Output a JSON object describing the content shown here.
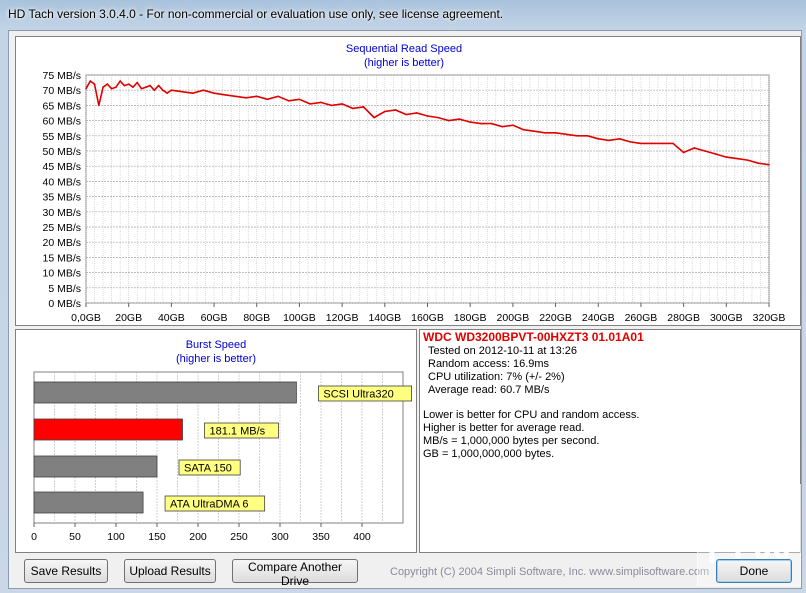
{
  "window": {
    "title": "HD Tach version 3.0.4.0  - For non-commercial or evaluation use only, see license agreement."
  },
  "seq_chart": {
    "title": "Sequential Read Speed",
    "subtitle": "(higher is better)",
    "y_ticks": [
      "0 MB/s",
      "5 MB/s",
      "10 MB/s",
      "15 MB/s",
      "20 MB/s",
      "25 MB/s",
      "30 MB/s",
      "35 MB/s",
      "40 MB/s",
      "45 MB/s",
      "50 MB/s",
      "55 MB/s",
      "60 MB/s",
      "65 MB/s",
      "70 MB/s",
      "75 MB/s"
    ],
    "x_ticks": [
      "0,0GB",
      "20GB",
      "40GB",
      "60GB",
      "80GB",
      "100GB",
      "120GB",
      "140GB",
      "160GB",
      "180GB",
      "200GB",
      "220GB",
      "240GB",
      "260GB",
      "280GB",
      "300GB",
      "320GB"
    ],
    "line_color": "#e00000"
  },
  "burst_chart": {
    "title": "Burst Speed",
    "subtitle": "(higher is better)",
    "x_ticks": [
      "0",
      "50",
      "100",
      "150",
      "200",
      "250",
      "300",
      "350",
      "400"
    ]
  },
  "chart_data": [
    {
      "type": "line",
      "title": "Sequential Read Speed",
      "subtitle": "(higher is better)",
      "xlabel": "",
      "ylabel": "",
      "xlim": [
        0,
        320
      ],
      "ylim": [
        0,
        75
      ],
      "grid": true,
      "series": [
        {
          "color": "#e00000",
          "x": [
            0,
            2,
            4,
            6,
            8,
            10,
            12,
            14,
            16,
            18,
            20,
            22,
            24,
            26,
            28,
            30,
            32,
            34,
            36,
            38,
            40,
            45,
            50,
            55,
            60,
            65,
            70,
            75,
            80,
            85,
            90,
            95,
            100,
            105,
            110,
            115,
            120,
            125,
            130,
            135,
            140,
            145,
            150,
            155,
            160,
            165,
            170,
            175,
            180,
            185,
            190,
            195,
            200,
            205,
            210,
            215,
            220,
            225,
            230,
            235,
            240,
            245,
            250,
            255,
            260,
            265,
            270,
            275,
            280,
            285,
            290,
            295,
            300,
            305,
            310,
            315,
            320
          ],
          "values": [
            70.5,
            73,
            72,
            65,
            71,
            72,
            70.5,
            71,
            73,
            71.5,
            72,
            71,
            72.5,
            70.5,
            71,
            71.5,
            70,
            71.5,
            70,
            69,
            70,
            69.5,
            69,
            70,
            69,
            68.5,
            68,
            67.5,
            68,
            67,
            68,
            66.5,
            67,
            65.5,
            66,
            65,
            65.5,
            64,
            64.5,
            61,
            63,
            63.5,
            62,
            62.5,
            61.5,
            61,
            60,
            60.5,
            59.5,
            59,
            59,
            58,
            58.5,
            57,
            56.5,
            56,
            56,
            55.5,
            55,
            55,
            54,
            53.5,
            54,
            53,
            52.5,
            52.5,
            52.5,
            52.5,
            49.5,
            51,
            50,
            49,
            48,
            47.5,
            47,
            46,
            45.5
          ]
        }
      ]
    },
    {
      "type": "bar",
      "orientation": "horizontal",
      "title": "Burst Speed",
      "subtitle": "(higher is better)",
      "xlim": [
        0,
        450
      ],
      "categories": [
        "SCSI Ultra320",
        "181.1 MB/s",
        "SATA 150",
        "ATA UltraDMA 6"
      ],
      "values": [
        320,
        181.1,
        150,
        133
      ],
      "colors": [
        "#808080",
        "#ff0000",
        "#808080",
        "#808080"
      ]
    }
  ],
  "results": {
    "drive_name": "WDC WD3200BPVT-00HXZT3 01.01A01",
    "tested_on": "Tested on 2012-10-11 at 13:26",
    "random_access": "Random access: 16.9ms",
    "cpu": "CPU utilization: 7% (+/- 2%)",
    "avg_read": "Average read: 60.7 MB/s",
    "note1": "Lower is better for CPU and random access.",
    "note2": "Higher is better for average read.",
    "note3": "MB/s = 1,000,000 bytes per second.",
    "note4": "GB = 1,000,000,000 bytes."
  },
  "buttons": {
    "save": "Save Results",
    "upload": "Upload Results",
    "compare": "Compare Another Drive",
    "done": "Done"
  },
  "footer": {
    "copyright": "Copyright (C) 2004 Simpli Software, Inc. www.simplisoftware.com"
  }
}
